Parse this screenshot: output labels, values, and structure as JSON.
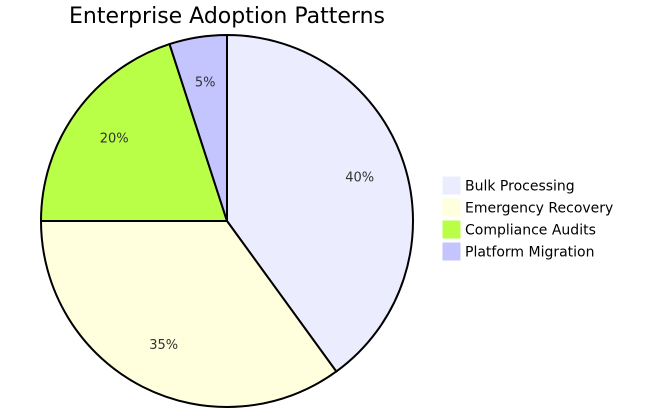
{
  "chart_data": {
    "type": "pie",
    "title": "Enterprise Adoption Patterns",
    "slices": [
      {
        "label": "Bulk Processing",
        "value": 40,
        "display": "40%",
        "color": "#ececff"
      },
      {
        "label": "Emergency Recovery",
        "value": 35,
        "display": "35%",
        "color": "#ffffde"
      },
      {
        "label": "Compliance Audits",
        "value": 20,
        "display": "20%",
        "color": "#b9ff47"
      },
      {
        "label": "Platform Migration",
        "value": 5,
        "display": "5%",
        "color": "#c4c4ff"
      }
    ],
    "legend_position": "right",
    "start": "12 o'clock, clockwise"
  }
}
